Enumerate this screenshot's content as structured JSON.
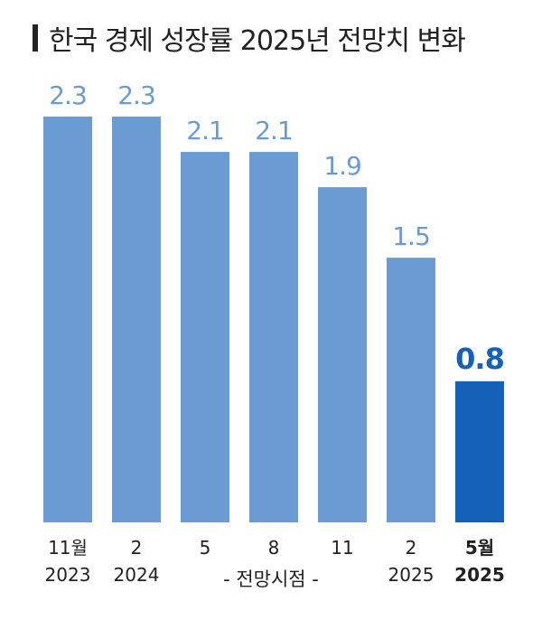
{
  "title": "한국 경제 성장률 2025년 전망치 변화",
  "colors": {
    "bar": "#6a9bd3",
    "highlight": "#1560b8",
    "text": "#222222"
  },
  "chart_data": {
    "type": "bar",
    "title": "한국 경제 성장률 2025년 전망치 변화",
    "xlabel": "전망시점",
    "ylabel": "",
    "ylim": [
      0,
      2.5
    ],
    "categories": [
      {
        "month": "11월",
        "year": "2023"
      },
      {
        "month": "2",
        "year": "2024"
      },
      {
        "month": "5",
        "year": ""
      },
      {
        "month": "8",
        "year": ""
      },
      {
        "month": "11",
        "year": ""
      },
      {
        "month": "2",
        "year": "2025"
      },
      {
        "month": "5월",
        "year": "2025"
      }
    ],
    "values": [
      2.3,
      2.3,
      2.1,
      2.1,
      1.9,
      1.5,
      0.8
    ],
    "value_labels": [
      "2.3",
      "2.3",
      "2.1",
      "2.1",
      "1.9",
      "1.5",
      "0.8"
    ],
    "highlight_index": 6,
    "grid": false,
    "legend": "none",
    "xaxis_note": "- 전망시점 -"
  }
}
